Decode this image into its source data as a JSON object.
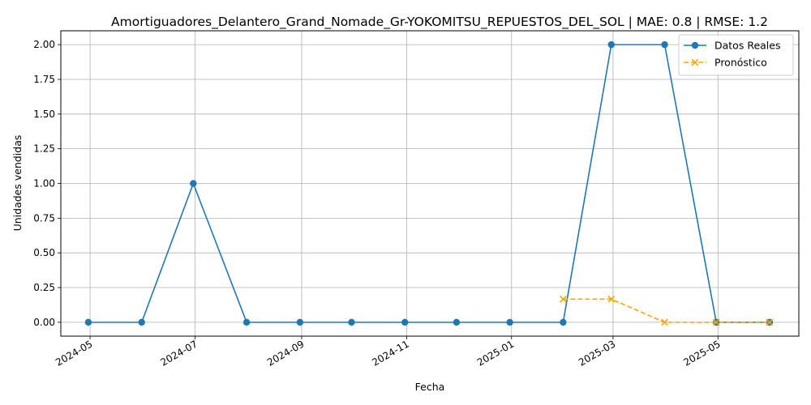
{
  "chart_data": {
    "type": "line",
    "title": "Amortiguadores_Delantero_Grand_Nomade_Gr-YOKOMITSU_REPUESTOS_DEL_SOL | MAE: 0.8 | RMSE: 1.2",
    "xlabel": "Fecha",
    "ylabel": "Unidades vendidas",
    "ylim": [
      -0.1,
      2.1
    ],
    "xlim": [
      "2024-04-14",
      "2025-06-17"
    ],
    "grid": true,
    "legend_position": "top-right",
    "x_ticks": [
      "2024-05-01",
      "2024-07-01",
      "2024-09-01",
      "2024-11-01",
      "2025-01-01",
      "2025-03-01",
      "2025-05-01"
    ],
    "x_tick_labels": [
      "2024-05",
      "2024-07",
      "2024-09",
      "2024-11",
      "2025-01",
      "2025-03",
      "2025-05"
    ],
    "y_ticks": [
      0.0,
      0.25,
      0.5,
      0.75,
      1.0,
      1.25,
      1.5,
      1.75,
      2.0
    ],
    "y_tick_labels": [
      "0.00",
      "0.25",
      "0.50",
      "0.75",
      "1.00",
      "1.25",
      "1.50",
      "1.75",
      "2.00"
    ],
    "series": [
      {
        "name": "Datos Reales",
        "color": "#1f77b4",
        "line_style": "solid",
        "marker": "circle",
        "x": [
          "2024-04-30",
          "2024-05-31",
          "2024-06-30",
          "2024-07-31",
          "2024-08-31",
          "2024-09-30",
          "2024-10-31",
          "2024-11-30",
          "2024-12-31",
          "2025-01-31",
          "2025-02-28",
          "2025-03-31",
          "2025-04-30",
          "2025-05-31"
        ],
        "y": [
          0,
          0,
          1,
          0,
          0,
          0,
          0,
          0,
          0,
          0,
          2,
          2,
          0,
          0
        ]
      },
      {
        "name": "Pronóstico",
        "color": "#ffa500",
        "line_style": "dashed",
        "marker": "x",
        "x": [
          "2025-01-31",
          "2025-02-28",
          "2025-03-31",
          "2025-04-30",
          "2025-05-31"
        ],
        "y": [
          0.1667,
          0.1667,
          0.0,
          0.0,
          0.0
        ]
      }
    ]
  }
}
